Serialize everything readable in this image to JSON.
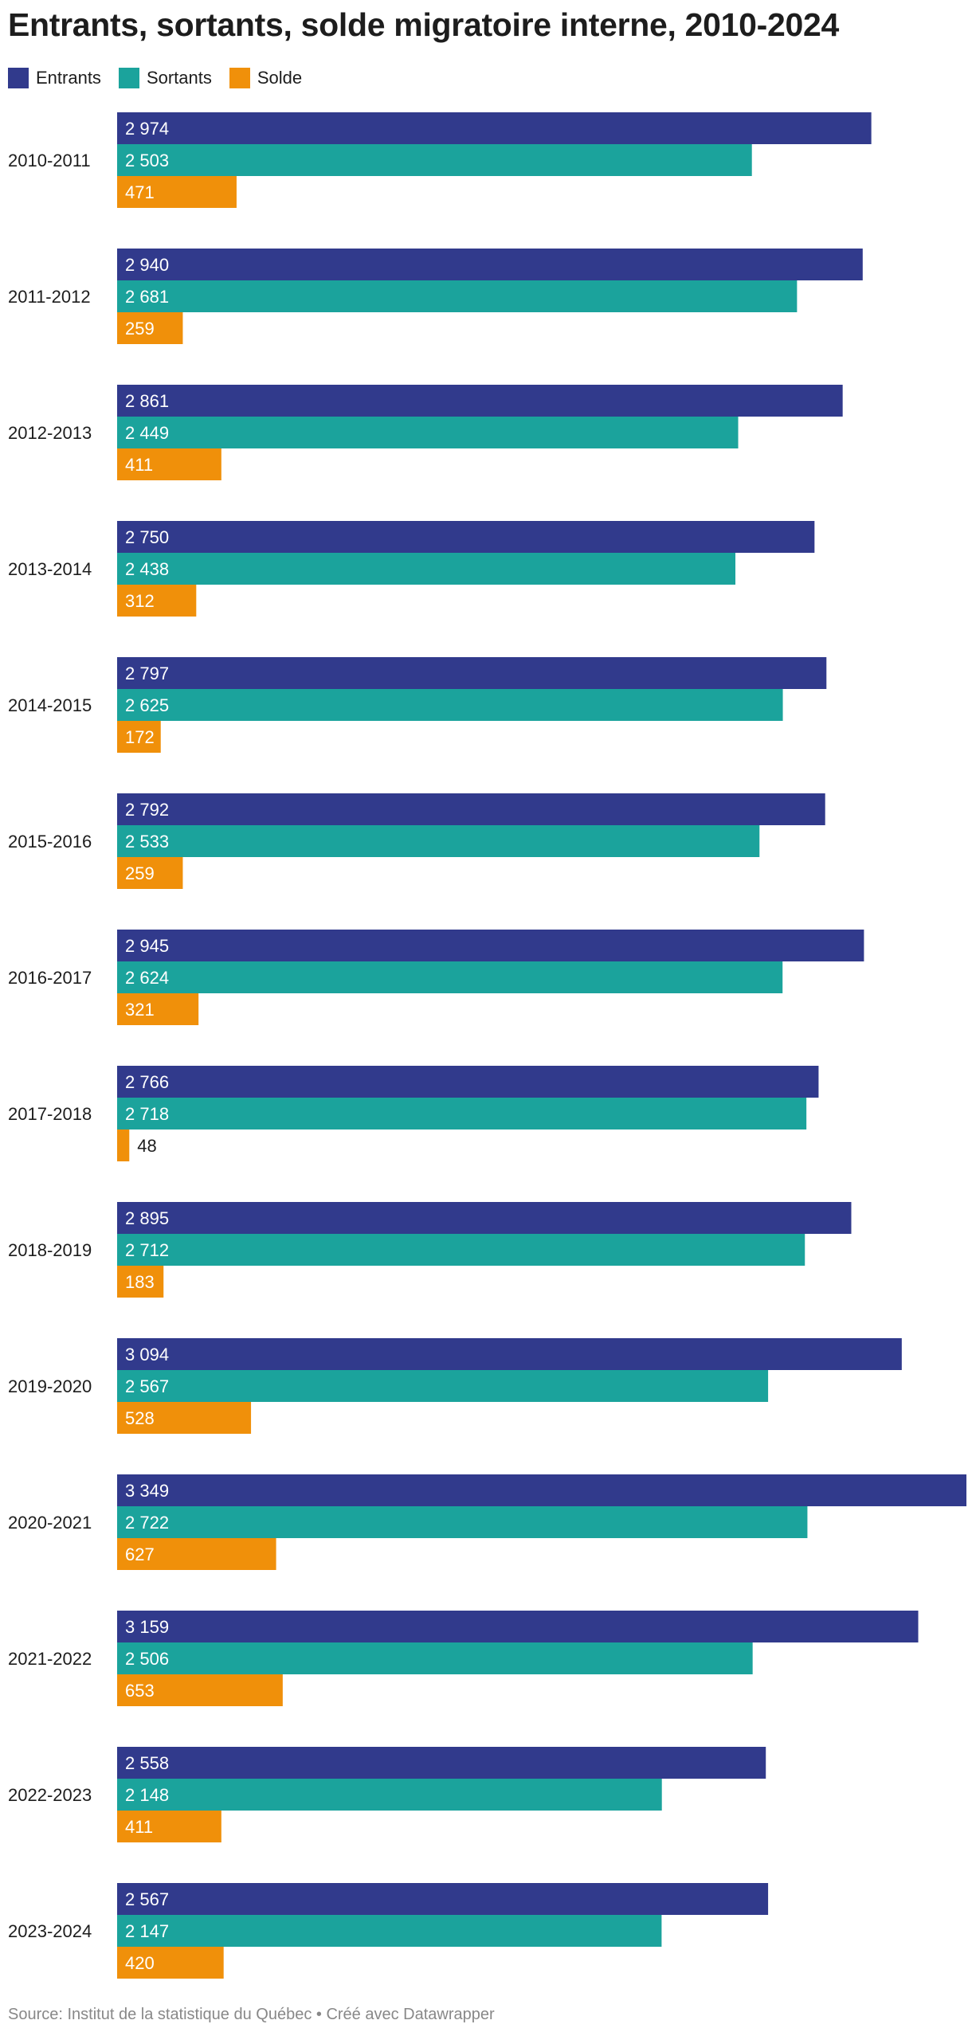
{
  "title": "Entrants, sortants, solde migratoire interne, 2010-2024",
  "source": "Source: Institut de la statistique du Québec • Créé avec Datawrapper",
  "legend": [
    {
      "label": "Entrants",
      "color": "#313a8c"
    },
    {
      "label": "Sortants",
      "color": "#1ba39c"
    },
    {
      "label": "Solde",
      "color": "#f0900a"
    }
  ],
  "chart_data": {
    "type": "bar",
    "orientation": "horizontal",
    "title": "Entrants, sortants, solde migratoire interne, 2010-2024",
    "categories": [
      "2010-2011",
      "2011-2012",
      "2012-2013",
      "2013-2014",
      "2014-2015",
      "2015-2016",
      "2016-2017",
      "2017-2018",
      "2018-2019",
      "2019-2020",
      "2020-2021",
      "2021-2022",
      "2022-2023",
      "2023-2024"
    ],
    "series": [
      {
        "name": "Entrants",
        "color": "#313a8c",
        "values": [
          2974,
          2940,
          2861,
          2750,
          2797,
          2792,
          2945,
          2766,
          2895,
          3094,
          3349,
          3159,
          2558,
          2567
        ],
        "labels": [
          "2 974",
          "2 940",
          "2 861",
          "2 750",
          "2 797",
          "2 792",
          "2 945",
          "2 766",
          "2 895",
          "3 094",
          "3 349",
          "3 159",
          "2 558",
          "2 567"
        ]
      },
      {
        "name": "Sortants",
        "color": "#1ba39c",
        "values": [
          2503,
          2681,
          2449,
          2438,
          2625,
          2533,
          2624,
          2718,
          2712,
          2567,
          2722,
          2506,
          2148,
          2147
        ],
        "labels": [
          "2 503",
          "2 681",
          "2 449",
          "2 438",
          "2 625",
          "2 533",
          "2 624",
          "2 718",
          "2 712",
          "2 567",
          "2 722",
          "2 506",
          "2 148",
          "2 147"
        ]
      },
      {
        "name": "Solde",
        "color": "#f0900a",
        "values": [
          471,
          259,
          411,
          312,
          172,
          259,
          321,
          48,
          183,
          528,
          627,
          653,
          411,
          420
        ],
        "labels": [
          "471",
          "259",
          "411",
          "312",
          "172",
          "259",
          "321",
          "48",
          "183",
          "528",
          "627",
          "653",
          "411",
          "420"
        ]
      }
    ],
    "xlim": [
      0,
      3349
    ],
    "legend_position": "top-left",
    "grid": false
  }
}
